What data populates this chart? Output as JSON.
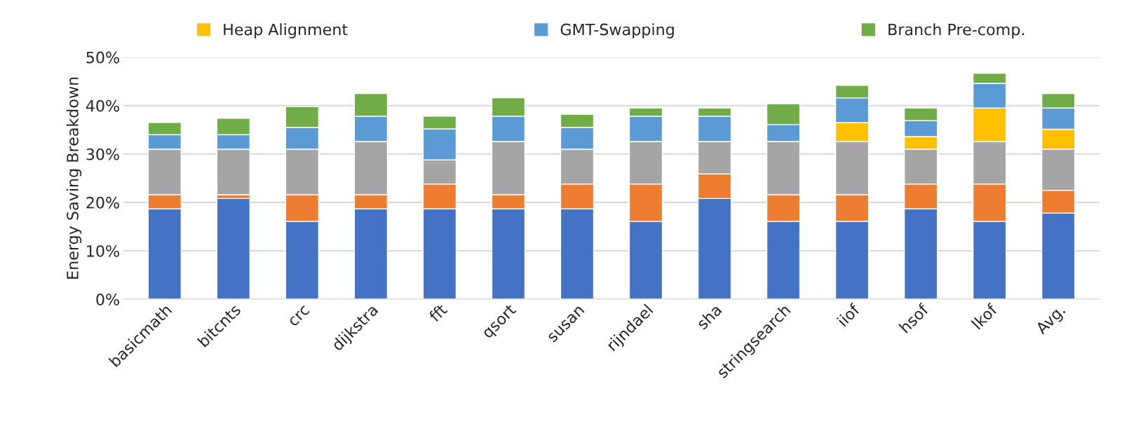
{
  "chart_data": {
    "type": "bar",
    "stacked": true,
    "ylabel": "Energy Saving Breakdown",
    "categories": [
      "basicmath",
      "bitcnts",
      "crc",
      "dijkstra",
      "fft",
      "qsort",
      "susan",
      "rijndael",
      "sha",
      "stringsearch",
      "iiof",
      "hsof",
      "lkof",
      "Avg."
    ],
    "series": [
      {
        "color": "#4472c4",
        "values": [
          18.7,
          20.8,
          16.1,
          18.7,
          18.7,
          18.7,
          18.7,
          16.1,
          20.8,
          16.1,
          16.1,
          18.7,
          16.1,
          17.8
        ]
      },
      {
        "color": "#ed7d31",
        "values": [
          2.9,
          0.8,
          5.5,
          2.9,
          5.1,
          2.9,
          5.1,
          7.7,
          5.1,
          5.5,
          5.5,
          5.1,
          7.7,
          4.7
        ]
      },
      {
        "color": "#a5a5a5",
        "values": [
          9.4,
          9.4,
          9.4,
          11.0,
          5.0,
          11.0,
          7.2,
          8.8,
          6.7,
          11.0,
          11.0,
          7.2,
          8.8,
          8.5
        ]
      },
      {
        "name": "Heap Alignment",
        "color": "#ffc000",
        "values": [
          0,
          0,
          0,
          0,
          0,
          0,
          0,
          0,
          0,
          0,
          3.9,
          2.6,
          6.9,
          4.1
        ]
      },
      {
        "name": "GMT-Swapping",
        "color": "#5b9bd5",
        "values": [
          3.0,
          3.0,
          4.5,
          5.2,
          6.4,
          5.2,
          4.5,
          5.2,
          5.2,
          3.5,
          5.1,
          3.3,
          5.1,
          4.4
        ]
      },
      {
        "name": "Branch Pre-comp.",
        "color": "#70ad47",
        "values": [
          2.5,
          3.4,
          4.3,
          4.7,
          2.6,
          3.8,
          2.7,
          1.7,
          1.7,
          4.3,
          2.6,
          2.6,
          2.1,
          3.0
        ]
      }
    ],
    "ylim": [
      0,
      50
    ],
    "yticks": [
      {
        "value": 0,
        "label": "0%"
      },
      {
        "value": 10,
        "label": "10%"
      },
      {
        "value": 20,
        "label": "20%"
      },
      {
        "value": 30,
        "label": "30%"
      },
      {
        "value": 40,
        "label": "40%"
      },
      {
        "value": 50,
        "label": "50%"
      }
    ],
    "grid": "y",
    "legend": "top"
  }
}
